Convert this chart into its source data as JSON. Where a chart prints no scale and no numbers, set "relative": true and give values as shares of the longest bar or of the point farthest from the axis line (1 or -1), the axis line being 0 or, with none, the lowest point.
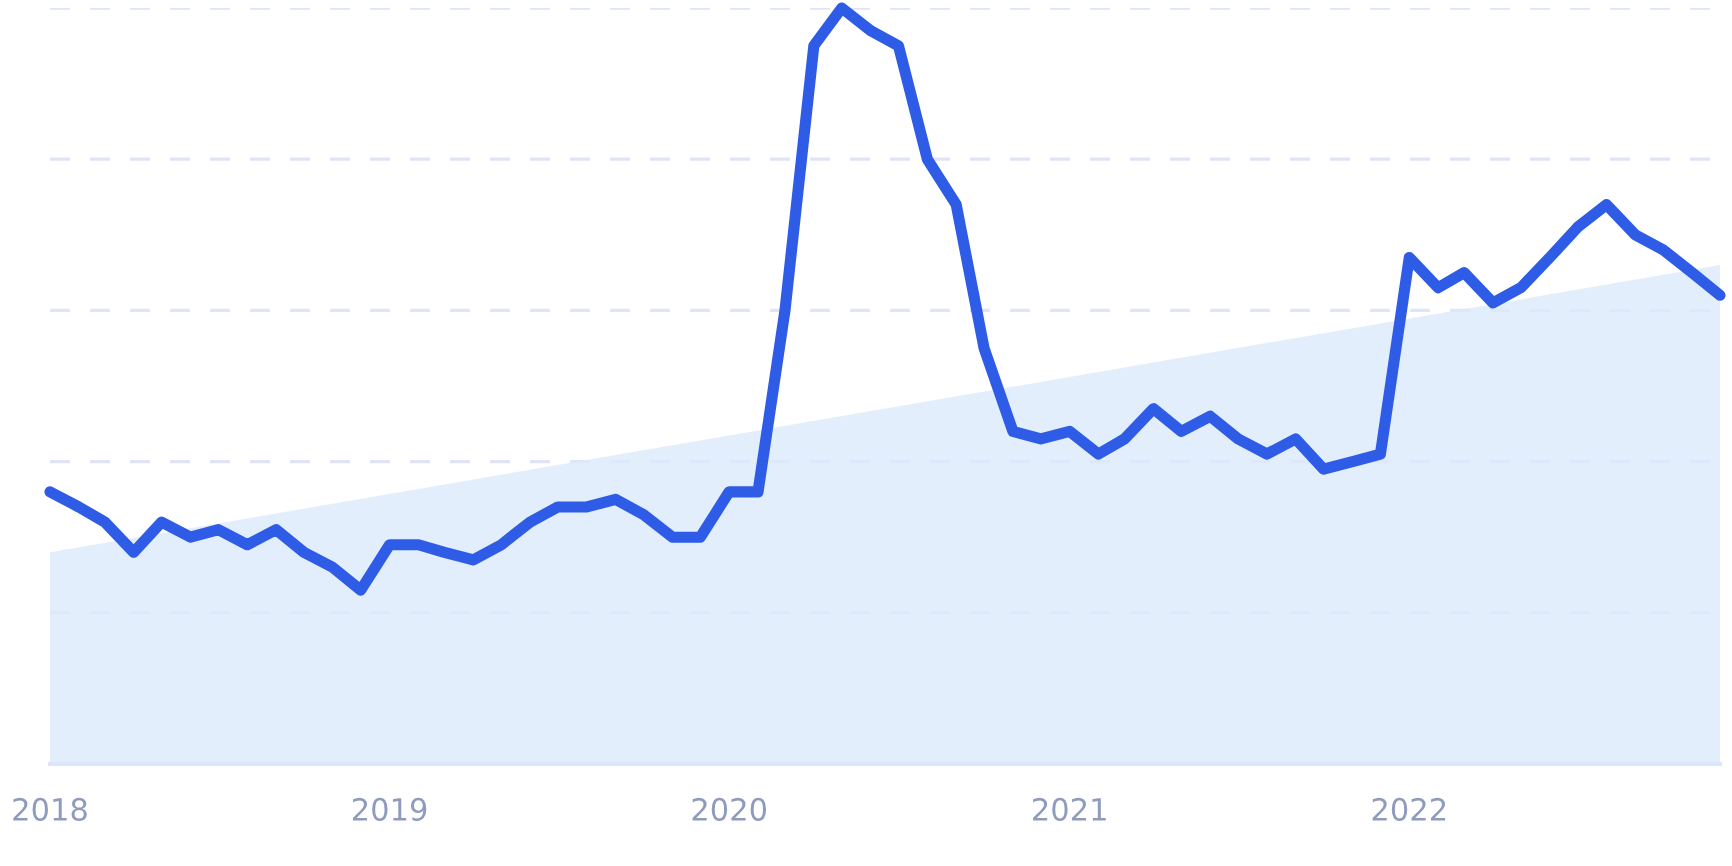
{
  "chart_data": {
    "type": "line",
    "relative": true,
    "grid": "y",
    "legend": false,
    "x": [
      "2018-01",
      "2018-02",
      "2018-03",
      "2018-04",
      "2018-05",
      "2018-06",
      "2018-07",
      "2018-08",
      "2018-09",
      "2018-10",
      "2018-11",
      "2018-12",
      "2019-01",
      "2019-02",
      "2019-03",
      "2019-04",
      "2019-05",
      "2019-06",
      "2019-07",
      "2019-08",
      "2019-09",
      "2019-10",
      "2019-11",
      "2019-12",
      "2020-01",
      "2020-02",
      "2020-03",
      "2020-04",
      "2020-05",
      "2020-06",
      "2020-07",
      "2020-08",
      "2020-09",
      "2020-10",
      "2020-11",
      "2020-12",
      "2021-01",
      "2021-02",
      "2021-03",
      "2021-04",
      "2021-05",
      "2021-06",
      "2021-07",
      "2021-08",
      "2021-09",
      "2021-10",
      "2021-11",
      "2021-12",
      "2022-01",
      "2022-02",
      "2022-03",
      "2022-04",
      "2022-05",
      "2022-06",
      "2022-07",
      "2022-08",
      "2022-09",
      "2022-10",
      "2022-11",
      "2022-12"
    ],
    "xlim": [
      "2018-01",
      "2022-12"
    ],
    "xticks": [
      "2018",
      "2019",
      "2020",
      "2021",
      "2022"
    ],
    "series": [
      {
        "type": "area",
        "color": "#dceafb",
        "x": [
          "2018-01",
          "2022-12"
        ],
        "values": [
          0.28,
          0.66
        ]
      },
      {
        "color": "#2f5ce6",
        "values": [
          0.36,
          0.34,
          0.32,
          0.28,
          0.32,
          0.3,
          0.31,
          0.29,
          0.31,
          0.28,
          0.26,
          0.23,
          0.29,
          0.29,
          0.28,
          0.27,
          0.29,
          0.32,
          0.34,
          0.34,
          0.35,
          0.33,
          0.3,
          0.3,
          0.36,
          0.36,
          0.6,
          0.95,
          1,
          0.97,
          0.95,
          0.8,
          0.74,
          0.55,
          0.44,
          0.43,
          0.44,
          0.41,
          0.43,
          0.47,
          0.44,
          0.46,
          0.43,
          0.41,
          0.43,
          0.39,
          0.4,
          0.41,
          0.67,
          0.63,
          0.65,
          0.61,
          0.63,
          0.67,
          0.71,
          0.74,
          0.7,
          0.68,
          0.65,
          0.62
        ]
      }
    ]
  }
}
